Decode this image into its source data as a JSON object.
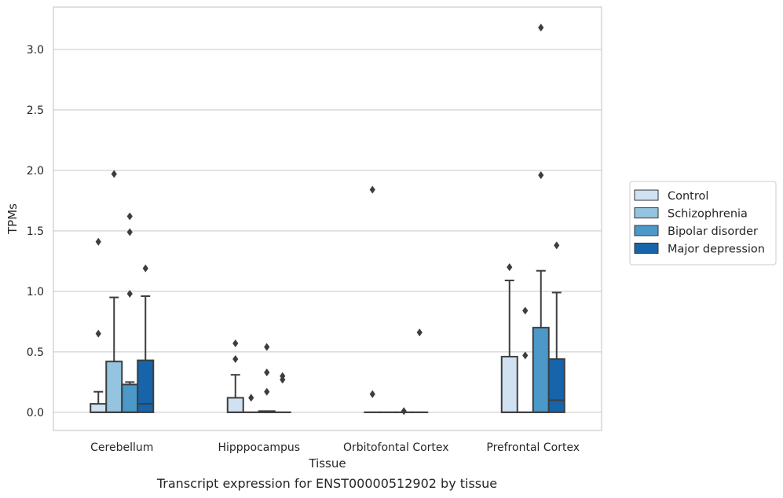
{
  "caption": "Transcript expression for ENST00000512902 by tissue",
  "chart_data": {
    "type": "box",
    "xlabel": "Tissue",
    "ylabel": "TPMs",
    "ylim": [
      -0.15,
      3.35
    ],
    "yticks": [
      0.0,
      0.5,
      1.0,
      1.5,
      2.0,
      2.5,
      3.0
    ],
    "ytick_labels": [
      "0.0",
      "0.5",
      "1.0",
      "1.5",
      "2.0",
      "2.5",
      "3.0"
    ],
    "categories": [
      "Cerebellum",
      "Hipppocampus",
      "Orbitofontal Cortex",
      "Prefrontal Cortex"
    ],
    "grid": "horizontal",
    "legend_position": "outside-right",
    "series": [
      {
        "name": "Control",
        "color": "#d0e1f2",
        "boxes": [
          {
            "q1": 0.0,
            "median": 0.0,
            "q3": 0.07,
            "whisker_low": 0.0,
            "whisker_high": 0.17,
            "outliers": [
              0.65,
              1.41
            ]
          },
          {
            "q1": 0.0,
            "median": 0.0,
            "q3": 0.12,
            "whisker_low": 0.0,
            "whisker_high": 0.31,
            "outliers": [
              0.44,
              0.57
            ]
          },
          {
            "q1": 0.0,
            "median": 0.0,
            "q3": 0.0,
            "whisker_low": 0.0,
            "whisker_high": 0.0,
            "outliers": [
              0.15,
              1.84
            ]
          },
          {
            "q1": 0.0,
            "median": 0.0,
            "q3": 0.46,
            "whisker_low": 0.0,
            "whisker_high": 1.09,
            "outliers": [
              1.2
            ]
          }
        ]
      },
      {
        "name": "Schizophrenia",
        "color": "#94c4df",
        "boxes": [
          {
            "q1": 0.0,
            "median": 0.0,
            "q3": 0.42,
            "whisker_low": 0.0,
            "whisker_high": 0.95,
            "outliers": [
              1.97
            ]
          },
          {
            "q1": 0.0,
            "median": 0.0,
            "q3": 0.0,
            "whisker_low": 0.0,
            "whisker_high": 0.0,
            "outliers": [
              0.12
            ]
          },
          {
            "q1": 0.0,
            "median": 0.0,
            "q3": 0.0,
            "whisker_low": 0.0,
            "whisker_high": 0.0,
            "outliers": []
          },
          {
            "q1": 0.0,
            "median": 0.0,
            "q3": 0.0,
            "whisker_low": 0.0,
            "whisker_high": 0.0,
            "outliers": [
              0.47,
              0.84
            ]
          }
        ]
      },
      {
        "name": "Bipolar disorder",
        "color": "#4b98c9",
        "boxes": [
          {
            "q1": 0.0,
            "median": 0.0,
            "q3": 0.23,
            "whisker_low": 0.0,
            "whisker_high": 0.25,
            "outliers": [
              0.98,
              1.49,
              1.62
            ]
          },
          {
            "q1": 0.0,
            "median": 0.0,
            "q3": 0.01,
            "whisker_low": 0.0,
            "whisker_high": 0.01,
            "outliers": [
              0.17,
              0.33,
              0.54
            ]
          },
          {
            "q1": 0.0,
            "median": 0.0,
            "q3": 0.0,
            "whisker_low": 0.0,
            "whisker_high": 0.0,
            "outliers": [
              0.01
            ]
          },
          {
            "q1": 0.0,
            "median": 0.0,
            "q3": 0.7,
            "whisker_low": 0.0,
            "whisker_high": 1.17,
            "outliers": [
              1.96,
              3.18
            ]
          }
        ]
      },
      {
        "name": "Major depression",
        "color": "#1764ab",
        "boxes": [
          {
            "q1": 0.0,
            "median": 0.07,
            "q3": 0.43,
            "whisker_low": 0.0,
            "whisker_high": 0.96,
            "outliers": [
              1.19
            ]
          },
          {
            "q1": 0.0,
            "median": 0.0,
            "q3": 0.0,
            "whisker_low": 0.0,
            "whisker_high": 0.0,
            "outliers": [
              0.27,
              0.3
            ]
          },
          {
            "q1": 0.0,
            "median": 0.0,
            "q3": 0.0,
            "whisker_low": 0.0,
            "whisker_high": 0.0,
            "outliers": [
              0.66
            ]
          },
          {
            "q1": 0.0,
            "median": 0.1,
            "q3": 0.44,
            "whisker_low": 0.0,
            "whisker_high": 0.99,
            "outliers": [
              1.38
            ]
          }
        ]
      }
    ]
  },
  "colors": {
    "grid": "#cccccc",
    "frame": "#cccccc",
    "box_edge": "#3d3d3d",
    "outlier": "#3d3d3d",
    "legend_border": "#cccccc"
  }
}
